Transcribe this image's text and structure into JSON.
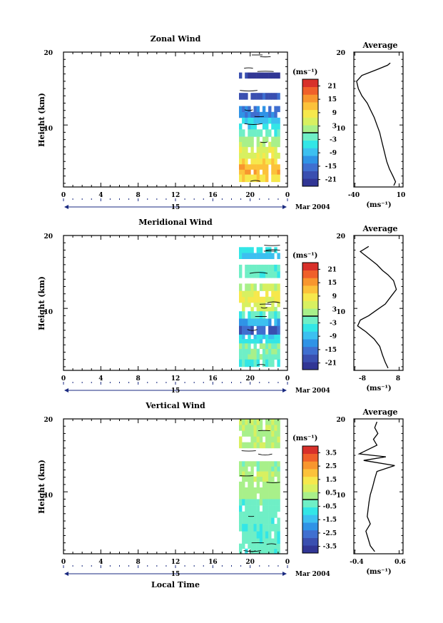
{
  "x_axis_label": "Local Time",
  "colors": [
    "#313695",
    "#3a4fb0",
    "#3f6fd0",
    "#2f93e6",
    "#3cc0f0",
    "#33e6e6",
    "#6fefc6",
    "#a8f08a",
    "#d8f060",
    "#f6e84c",
    "#fcc23a",
    "#f8962e",
    "#f0602a",
    "#d8302a"
  ],
  "panels": [
    {
      "title": "Zonal Wind",
      "unit_label": "(ms⁻¹)",
      "ylabel": "Height (km)",
      "colorbar_ticks": [
        "21",
        "15",
        "9",
        "3",
        "-3",
        "-9",
        "-15",
        "-21"
      ],
      "avg_title": "Average",
      "avg_xlabel": "(ms⁻¹)",
      "avg_xticks": [
        "-40",
        "10"
      ],
      "date_mid_label": "15",
      "date_label": "Mar 2004",
      "time_ticks": [
        "0",
        "4",
        "8",
        "12",
        "16",
        "20",
        "0"
      ],
      "height_ticks": [
        "20",
        "10"
      ]
    },
    {
      "title": "Meridional Wind",
      "unit_label": "(ms⁻¹)",
      "ylabel": "Height (km)",
      "colorbar_ticks": [
        "21",
        "15",
        "9",
        "3",
        "-3",
        "-9",
        "-15",
        "-21"
      ],
      "avg_title": "Average",
      "avg_xlabel": "(ms⁻¹)",
      "avg_xticks": [
        "-8",
        "8"
      ],
      "date_mid_label": "15",
      "date_label": "Mar 2004",
      "time_ticks": [
        "0",
        "4",
        "8",
        "12",
        "16",
        "20",
        "0"
      ],
      "height_ticks": [
        "20",
        "10"
      ]
    },
    {
      "title": "Vertical Wind",
      "unit_label": "(ms⁻¹)",
      "ylabel": "Height (km)",
      "colorbar_ticks": [
        "3.5",
        "2.5",
        "1.5",
        "0.5",
        "-0.5",
        "-1.5",
        "-2.5",
        "-3.5"
      ],
      "avg_title": "Average",
      "avg_xlabel": "(ms⁻¹)",
      "avg_xticks": [
        "-0.4",
        "0.6"
      ],
      "date_mid_label": "15",
      "date_label": "Mar 2004",
      "time_ticks": [
        "0",
        "4",
        "8",
        "12",
        "16",
        "20",
        "0"
      ],
      "height_ticks": [
        "20",
        "10"
      ]
    }
  ],
  "chart_data": [
    {
      "type": "heatmap",
      "title": "Zonal Wind",
      "xlabel": "",
      "ylabel": "Height (km)",
      "xlim": [
        0,
        24
      ],
      "ylim": [
        1.5,
        20
      ],
      "x_ticks": [
        0,
        4,
        8,
        12,
        16,
        20,
        24
      ],
      "y_ticks": [
        10,
        20
      ],
      "data_time_range": [
        18.8,
        23.2
      ],
      "colorbar": {
        "min": -24,
        "max": 24,
        "ticks": [
          21,
          15,
          9,
          3,
          -3,
          -9,
          -15,
          -21
        ],
        "zero_contour": true
      },
      "layers": [
        {
          "z0": 16.4,
          "z1": 17.2,
          "value": -22
        },
        {
          "z0": 13.5,
          "z1": 14.4,
          "value": -18
        },
        {
          "z0": 11.0,
          "z1": 12.6,
          "value": -14
        },
        {
          "z0": 9.4,
          "z1": 11.0,
          "value": -7
        },
        {
          "z0": 8.4,
          "z1": 9.4,
          "value": -2
        },
        {
          "z0": 7.0,
          "z1": 8.4,
          "value": 2
        },
        {
          "z0": 5.4,
          "z1": 7.0,
          "value": 6
        },
        {
          "z0": 4.6,
          "z1": 5.4,
          "value": 10
        },
        {
          "z0": 3.2,
          "z1": 4.6,
          "value": 13
        },
        {
          "z0": 2.2,
          "z1": 3.2,
          "value": 10
        }
      ],
      "average": {
        "xlim": [
          -40,
          10
        ],
        "x_ticks": [
          -40,
          10
        ],
        "profile": [
          {
            "x": 0,
            "y": 18.5
          },
          {
            "x": -3,
            "y": 18.2
          },
          {
            "x": -15,
            "y": 17.6
          },
          {
            "x": -32,
            "y": 16.8
          },
          {
            "x": -38,
            "y": 16.0
          },
          {
            "x": -36,
            "y": 15.0
          },
          {
            "x": -32,
            "y": 14.0
          },
          {
            "x": -26,
            "y": 13.0
          },
          {
            "x": -22,
            "y": 12.0
          },
          {
            "x": -18,
            "y": 11.0
          },
          {
            "x": -15,
            "y": 10.0
          },
          {
            "x": -12,
            "y": 9.0
          },
          {
            "x": -10,
            "y": 8.0
          },
          {
            "x": -8,
            "y": 7.0
          },
          {
            "x": -6,
            "y": 6.0
          },
          {
            "x": -4,
            "y": 5.0
          },
          {
            "x": -1,
            "y": 4.0
          },
          {
            "x": 3,
            "y": 3.0
          },
          {
            "x": 6,
            "y": 2.2
          },
          {
            "x": 4,
            "y": 1.7
          }
        ]
      }
    },
    {
      "type": "heatmap",
      "title": "Meridional Wind",
      "xlabel": "",
      "ylabel": "Height (km)",
      "xlim": [
        0,
        24
      ],
      "ylim": [
        1.5,
        20
      ],
      "x_ticks": [
        0,
        4,
        8,
        12,
        16,
        20,
        24
      ],
      "y_ticks": [
        10,
        20
      ],
      "data_time_range": [
        18.8,
        23.2
      ],
      "colorbar": {
        "min": -24,
        "max": 24,
        "ticks": [
          21,
          15,
          9,
          3,
          -3,
          -9,
          -15,
          -21
        ],
        "zero_contour": true
      },
      "layers": [
        {
          "z0": 17.6,
          "z1": 18.4,
          "value": -4
        },
        {
          "z0": 16.8,
          "z1": 17.6,
          "value": -8
        },
        {
          "z0": 14.2,
          "z1": 16.0,
          "value": -2
        },
        {
          "z0": 12.4,
          "z1": 13.4,
          "value": 4
        },
        {
          "z0": 10.8,
          "z1": 12.4,
          "value": 8
        },
        {
          "z0": 9.6,
          "z1": 10.8,
          "value": 5
        },
        {
          "z0": 8.6,
          "z1": 9.6,
          "value": -3
        },
        {
          "z0": 7.6,
          "z1": 8.6,
          "value": -10
        },
        {
          "z0": 6.4,
          "z1": 7.6,
          "value": -16
        },
        {
          "z0": 5.2,
          "z1": 6.4,
          "value": -6
        },
        {
          "z0": 3.0,
          "z1": 5.2,
          "value": 0
        },
        {
          "z0": 2.0,
          "z1": 3.0,
          "value": -4
        }
      ],
      "average": {
        "xlim": [
          -8,
          8
        ],
        "x_ticks": [
          -8,
          8
        ],
        "profile": [
          {
            "x": -3,
            "y": 18.5
          },
          {
            "x": -6,
            "y": 17.8
          },
          {
            "x": -4,
            "y": 17.2
          },
          {
            "x": -2,
            "y": 16.6
          },
          {
            "x": 0,
            "y": 16.0
          },
          {
            "x": 2,
            "y": 15.2
          },
          {
            "x": 4,
            "y": 14.6
          },
          {
            "x": 6,
            "y": 13.8
          },
          {
            "x": 7,
            "y": 12.6
          },
          {
            "x": 5,
            "y": 11.6
          },
          {
            "x": 3,
            "y": 10.6
          },
          {
            "x": 0,
            "y": 9.8
          },
          {
            "x": -3,
            "y": 9.0
          },
          {
            "x": -6,
            "y": 8.4
          },
          {
            "x": -7,
            "y": 7.6
          },
          {
            "x": -4,
            "y": 6.8
          },
          {
            "x": -1,
            "y": 5.8
          },
          {
            "x": 1,
            "y": 4.8
          },
          {
            "x": 2,
            "y": 3.6
          },
          {
            "x": 3,
            "y": 2.6
          },
          {
            "x": 4,
            "y": 1.8
          }
        ]
      }
    },
    {
      "type": "heatmap",
      "title": "Vertical Wind",
      "xlabel": "Local Time",
      "ylabel": "Height (km)",
      "xlim": [
        0,
        24
      ],
      "ylim": [
        1.5,
        20
      ],
      "x_ticks": [
        0,
        4,
        8,
        12,
        16,
        20,
        24
      ],
      "y_ticks": [
        10,
        20
      ],
      "data_time_range": [
        18.8,
        23.2
      ],
      "colorbar": {
        "min": -4,
        "max": 4,
        "ticks": [
          3.5,
          2.5,
          1.5,
          0.5,
          -0.5,
          -1.5,
          -2.5,
          -3.5
        ],
        "zero_contour": true
      },
      "layers": [
        {
          "z0": 16.0,
          "z1": 20.0,
          "value": 0.4
        },
        {
          "z0": 12.8,
          "z1": 14.2,
          "value": 0.2
        },
        {
          "z0": 11.4,
          "z1": 12.8,
          "value": 0.5
        },
        {
          "z0": 9.0,
          "z1": 11.4,
          "value": 0.3
        },
        {
          "z0": 5.6,
          "z1": 9.0,
          "value": -0.3
        },
        {
          "z0": 3.6,
          "z1": 5.6,
          "value": -0.5
        },
        {
          "z0": 1.5,
          "z1": 3.6,
          "value": -0.4
        }
      ],
      "average": {
        "xlim": [
          -0.4,
          0.6
        ],
        "x_ticks": [
          -0.4,
          0.6
        ],
        "profile": [
          {
            "x": 0.1,
            "y": 19.6
          },
          {
            "x": 0.05,
            "y": 18.8
          },
          {
            "x": 0.12,
            "y": 18.0
          },
          {
            "x": 0.02,
            "y": 17.2
          },
          {
            "x": 0.1,
            "y": 16.4
          },
          {
            "x": -0.3,
            "y": 15.2
          },
          {
            "x": 0.3,
            "y": 14.8
          },
          {
            "x": -0.2,
            "y": 14.3
          },
          {
            "x": 0.5,
            "y": 13.6
          },
          {
            "x": 0.1,
            "y": 12.8
          },
          {
            "x": 0.05,
            "y": 11.8
          },
          {
            "x": 0.0,
            "y": 10.6
          },
          {
            "x": -0.05,
            "y": 9.6
          },
          {
            "x": -0.08,
            "y": 8.6
          },
          {
            "x": -0.1,
            "y": 7.6
          },
          {
            "x": -0.12,
            "y": 6.6
          },
          {
            "x": -0.05,
            "y": 5.6
          },
          {
            "x": -0.15,
            "y": 4.6
          },
          {
            "x": -0.1,
            "y": 3.6
          },
          {
            "x": -0.05,
            "y": 2.6
          },
          {
            "x": 0.05,
            "y": 1.8
          }
        ]
      }
    }
  ]
}
